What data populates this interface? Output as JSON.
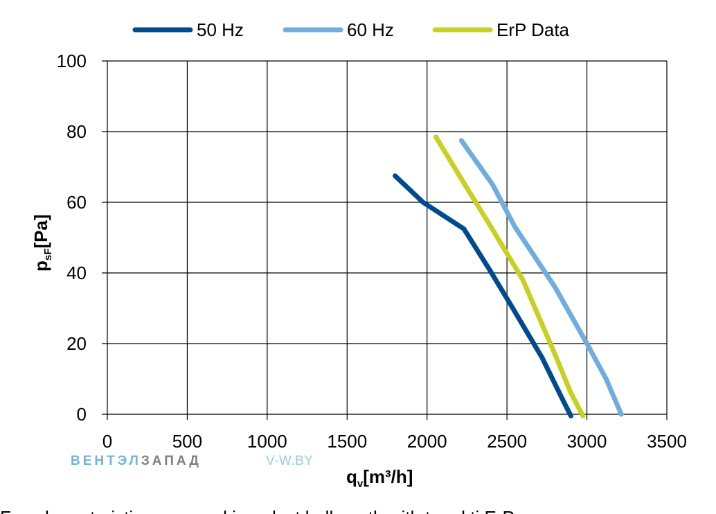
{
  "chart_data": {
    "type": "line",
    "xlabel_main": "q",
    "xlabel_sub": "v",
    "xlabel_unit": "[m³/h]",
    "ylabel_main": "p",
    "ylabel_sub": "sF",
    "ylabel_unit": "[Pa]",
    "xlim": [
      0,
      3500
    ],
    "ylim": [
      0,
      100
    ],
    "x_ticks": [
      0,
      500,
      1000,
      1500,
      2000,
      2500,
      3000,
      3500
    ],
    "y_ticks": [
      0,
      20,
      40,
      60,
      80,
      100
    ],
    "grid": true,
    "legend_position": "top",
    "series": [
      {
        "name": "50 Hz",
        "color": "#004a8f",
        "points": [
          [
            1800,
            67.5
          ],
          [
            1975,
            60
          ],
          [
            2230,
            52.5
          ],
          [
            2390,
            41
          ],
          [
            2530,
            30.5
          ],
          [
            2720,
            16
          ],
          [
            2850,
            4
          ],
          [
            2900,
            -0.5
          ]
        ]
      },
      {
        "name": "60 Hz",
        "color": "#6fadde",
        "points": [
          [
            2215,
            77.5
          ],
          [
            2410,
            65
          ],
          [
            2550,
            53
          ],
          [
            2800,
            36
          ],
          [
            3000,
            20
          ],
          [
            3120,
            10
          ],
          [
            3215,
            0
          ]
        ]
      },
      {
        "name": "ErP Data",
        "color": "#c6d122",
        "points": [
          [
            2055,
            78.5
          ],
          [
            2250,
            64
          ],
          [
            2400,
            53
          ],
          [
            2600,
            38
          ],
          [
            2800,
            17
          ],
          [
            2900,
            6
          ],
          [
            2975,
            -0.5
          ]
        ]
      }
    ]
  },
  "watermark": {
    "part1": "ВЕНТЭЛ",
    "part1_color": "#6fb3df",
    "part2": "ЗАПАД",
    "part2_color": "#7f7f7f",
    "part3": "V-W.BY",
    "part3_color": "#9cc8e8"
  },
  "caption": "Fan characteristic measured in a duct ballmouth with t and ti ErP"
}
